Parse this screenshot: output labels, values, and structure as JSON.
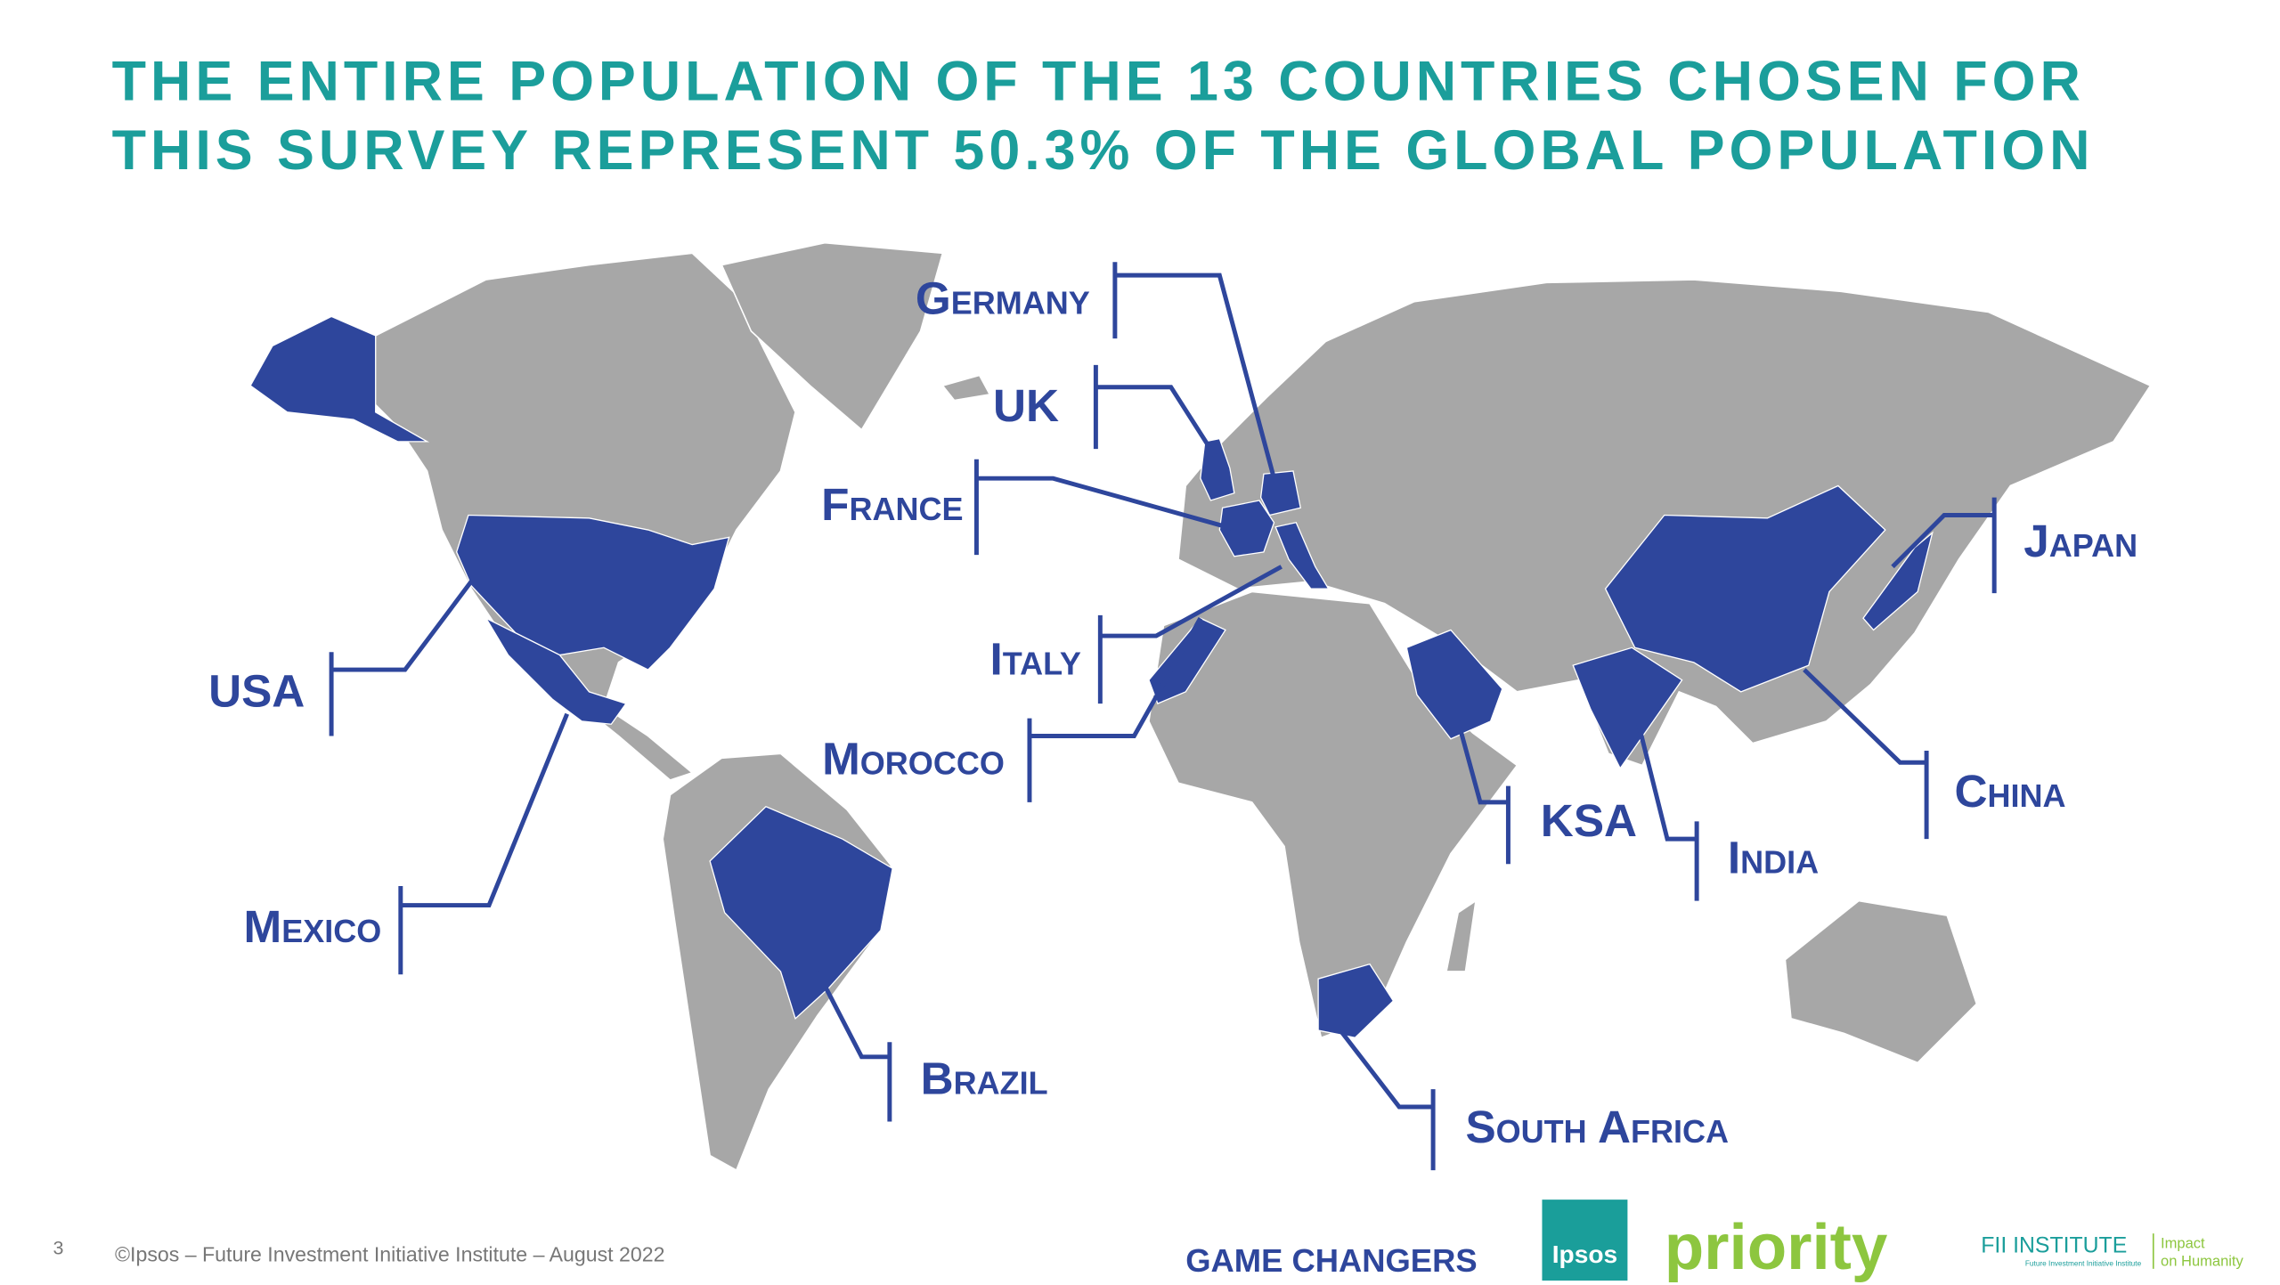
{
  "title_lines": [
    "THE ENTIRE POPULATION OF THE 13 COUNTRIES CHOSEN FOR",
    "THIS SURVEY REPRESENT 50.3% OF THE GLOBAL POPULATION"
  ],
  "countries": [
    {
      "label": "Germany"
    },
    {
      "label": "UK"
    },
    {
      "label": "France"
    },
    {
      "label": "Italy"
    },
    {
      "label": "Morocco"
    },
    {
      "label": "USA"
    },
    {
      "label": "Mexico"
    },
    {
      "label": "Brazil"
    },
    {
      "label": "South Africa"
    },
    {
      "label": "KSA"
    },
    {
      "label": "India"
    },
    {
      "label": "China"
    },
    {
      "label": "Japan"
    }
  ],
  "footer": {
    "page_number": "3",
    "copyright": "©Ipsos – Future Investment Initiative Institute – August 2022"
  },
  "logos": {
    "game_changers": "GAME CHANGERS",
    "ipsos": "Ipsos",
    "priority": "priority",
    "fii": "FII INSTITUTE",
    "fii_sub": "Future Investment Initiative Institute",
    "impact_1": "Impact",
    "impact_2": "on Humanity"
  }
}
